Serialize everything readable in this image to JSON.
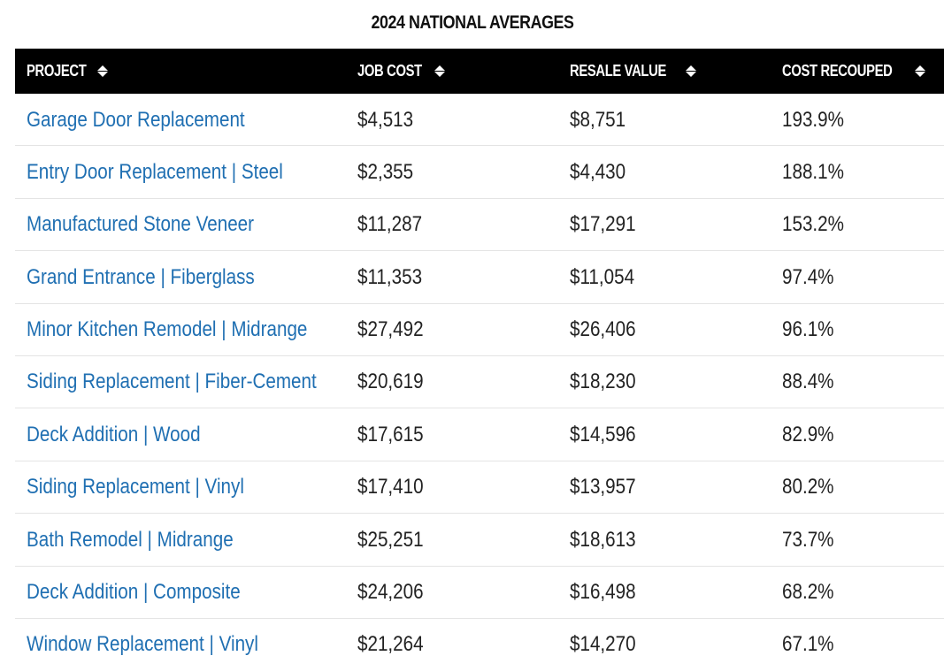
{
  "title": "2024 NATIONAL AVERAGES",
  "colors": {
    "header_bg": "#000000",
    "header_text": "#ffffff",
    "link": "#1f6fb2",
    "text": "#222222",
    "divider": "#e4e4e4"
  },
  "columns": [
    {
      "label": "PROJECT",
      "icon": "sort-icon"
    },
    {
      "label": "JOB COST",
      "icon": "sort-icon"
    },
    {
      "label": "RESALE VALUE",
      "icon": "sort-icon"
    },
    {
      "label": "COST RECOUPED",
      "icon": "sort-icon"
    }
  ],
  "rows": [
    {
      "project": "Garage Door Replacement",
      "job_cost": "$4,513",
      "resale_value": "$8,751",
      "cost_recouped": "193.9%"
    },
    {
      "project": "Entry Door Replacement | Steel",
      "job_cost": "$2,355",
      "resale_value": "$4,430",
      "cost_recouped": "188.1%"
    },
    {
      "project": "Manufactured Stone Veneer",
      "job_cost": "$11,287",
      "resale_value": "$17,291",
      "cost_recouped": "153.2%"
    },
    {
      "project": "Grand Entrance | Fiberglass",
      "job_cost": "$11,353",
      "resale_value": "$11,054",
      "cost_recouped": "97.4%"
    },
    {
      "project": "Minor Kitchen Remodel | Midrange",
      "job_cost": "$27,492",
      "resale_value": "$26,406",
      "cost_recouped": "96.1%"
    },
    {
      "project": "Siding Replacement | Fiber-Cement",
      "job_cost": "$20,619",
      "resale_value": "$18,230",
      "cost_recouped": "88.4%"
    },
    {
      "project": "Deck Addition | Wood",
      "job_cost": "$17,615",
      "resale_value": "$14,596",
      "cost_recouped": "82.9%"
    },
    {
      "project": "Siding Replacement | Vinyl",
      "job_cost": "$17,410",
      "resale_value": "$13,957",
      "cost_recouped": "80.2%"
    },
    {
      "project": "Bath Remodel | Midrange",
      "job_cost": "$25,251",
      "resale_value": "$18,613",
      "cost_recouped": "73.7%"
    },
    {
      "project": "Deck Addition | Composite",
      "job_cost": "$24,206",
      "resale_value": "$16,498",
      "cost_recouped": "68.2%"
    },
    {
      "project": "Window Replacement | Vinyl",
      "job_cost": "$21,264",
      "resale_value": "$14,270",
      "cost_recouped": "67.1%"
    }
  ]
}
